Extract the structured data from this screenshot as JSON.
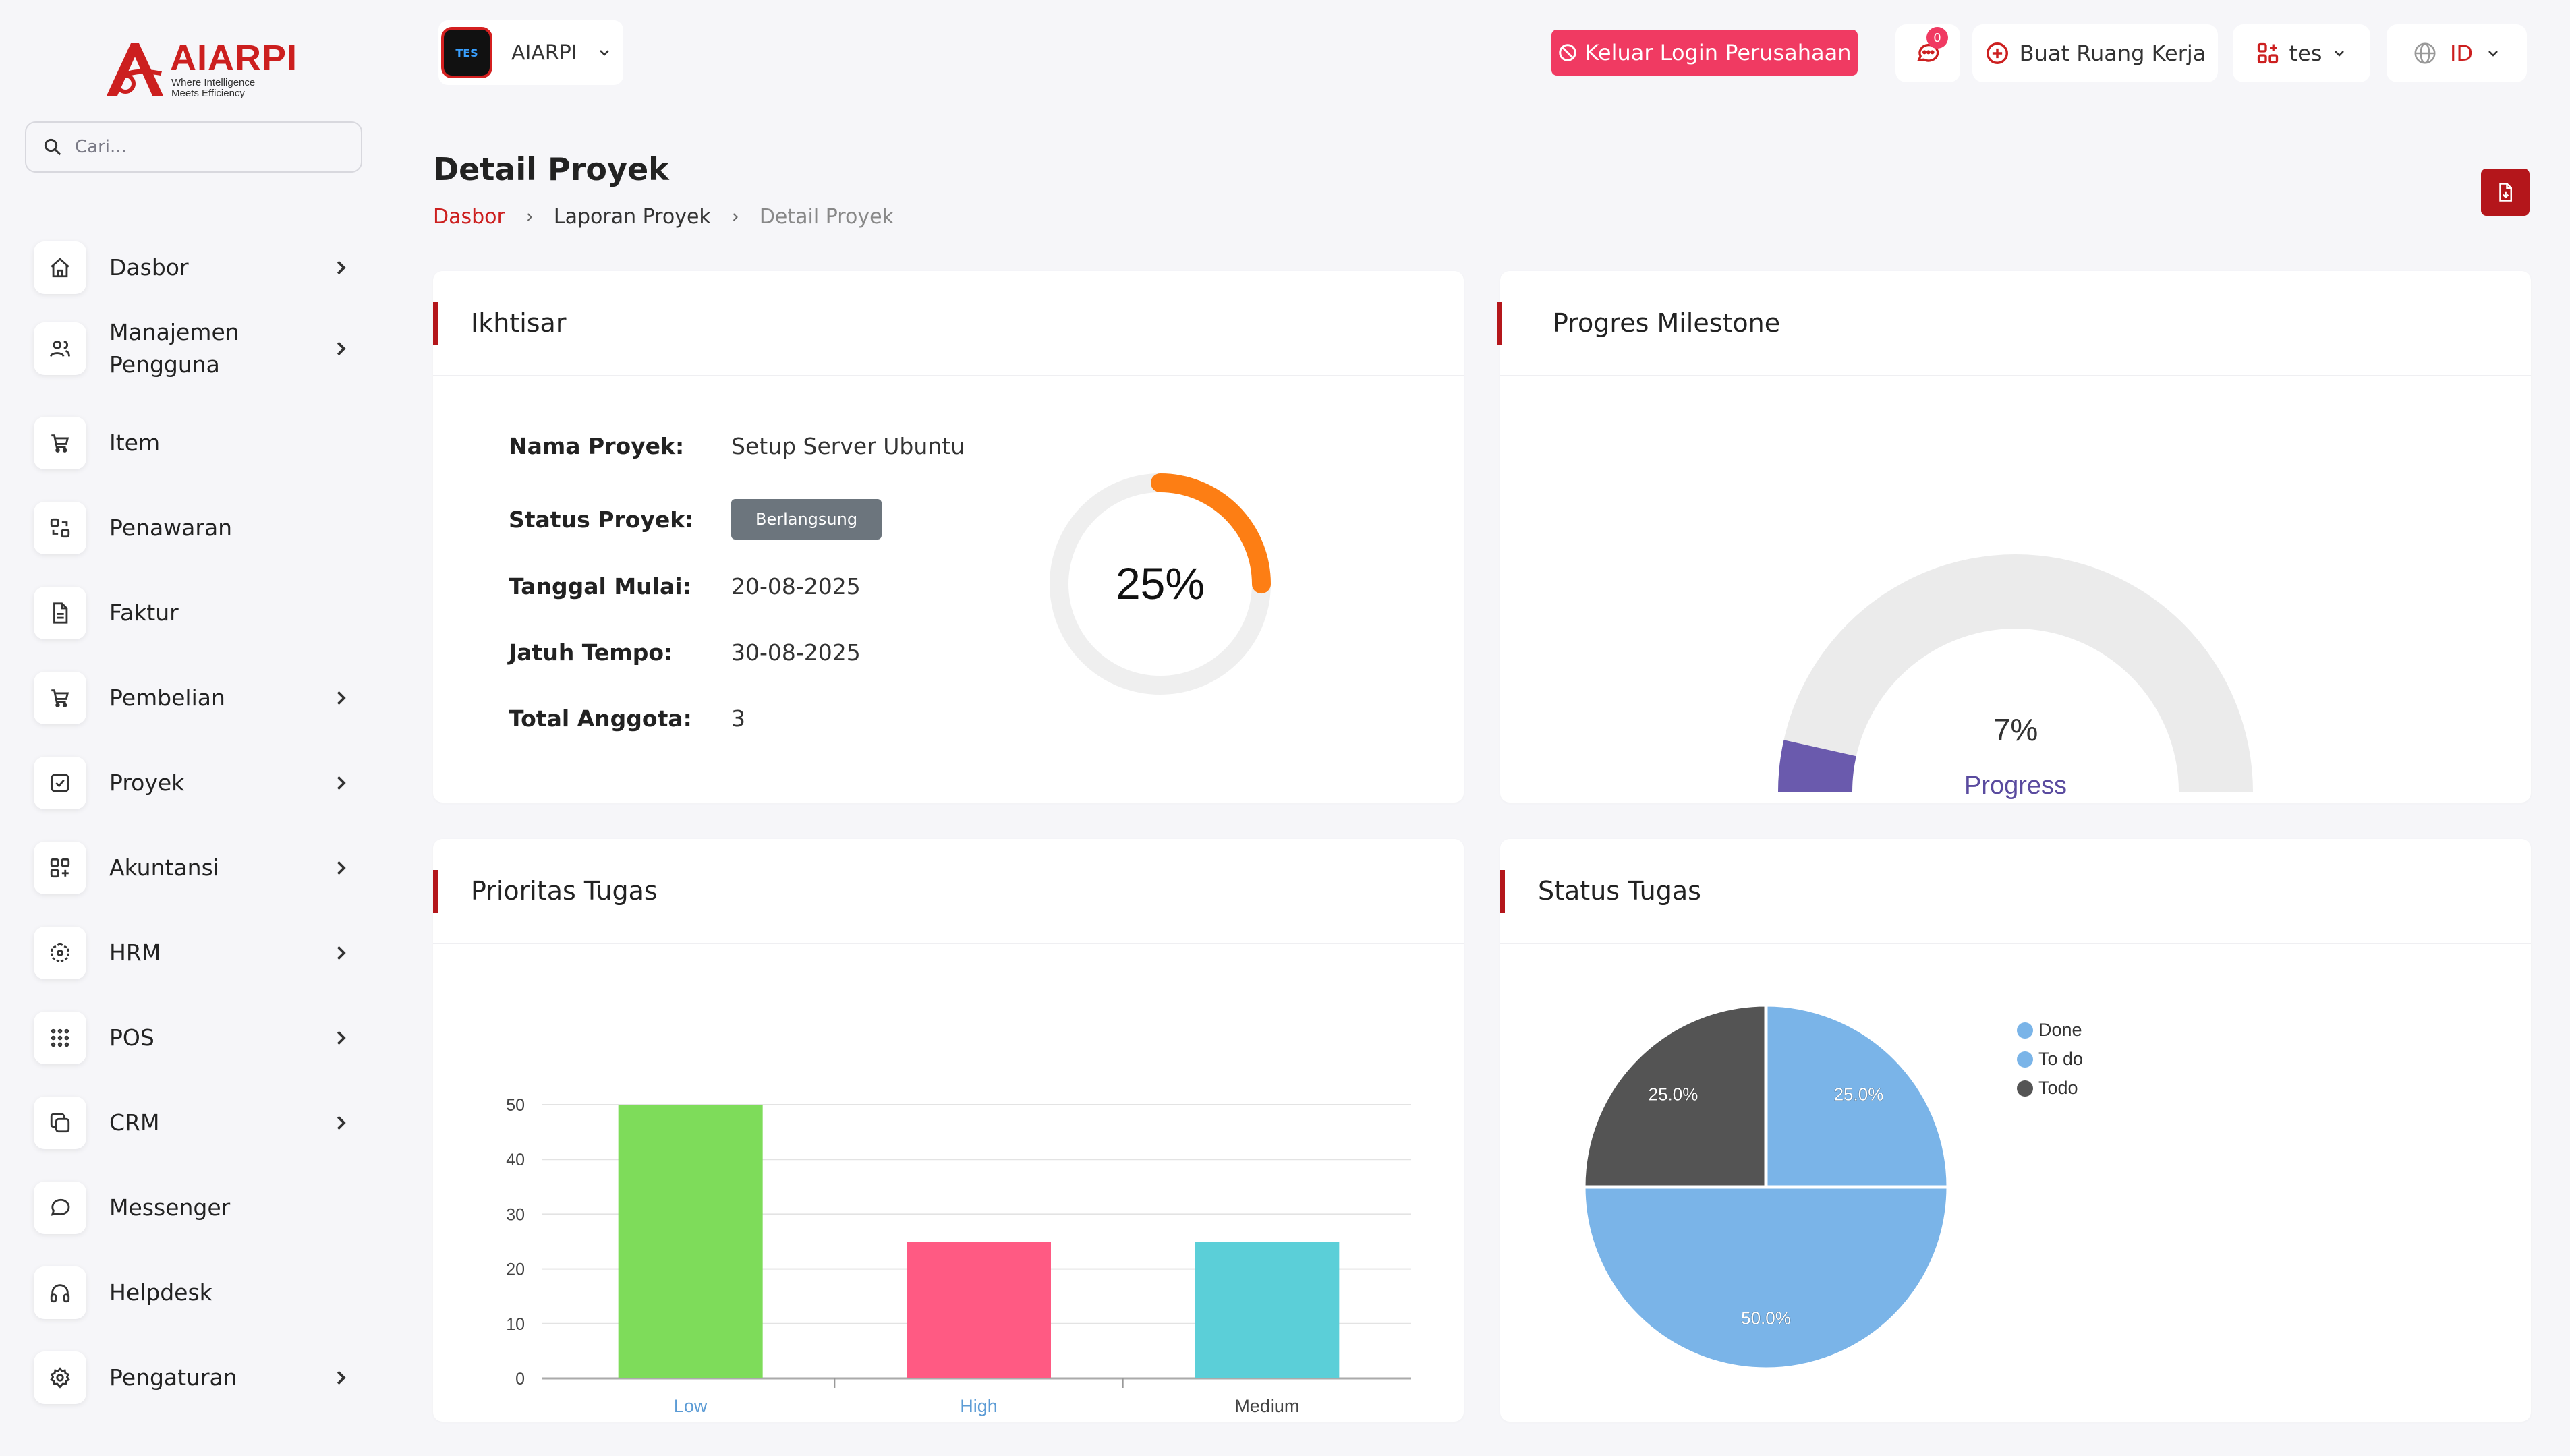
{
  "brand": {
    "name": "AIARPI",
    "tagline_line1": "Where Intelligence",
    "tagline_line2": "Meets Efficiency"
  },
  "search": {
    "placeholder": "Cari..."
  },
  "sidebar": {
    "items": [
      {
        "label": "Dasbor",
        "icon": "home-icon",
        "has_submenu": true
      },
      {
        "label": "Manajemen Pengguna",
        "icon": "users-icon",
        "has_submenu": true
      },
      {
        "label": "Item",
        "icon": "cart-icon",
        "has_submenu": false
      },
      {
        "label": "Penawaran",
        "icon": "swap-icon",
        "has_submenu": false
      },
      {
        "label": "Faktur",
        "icon": "file-icon",
        "has_submenu": false
      },
      {
        "label": "Pembelian",
        "icon": "cart-icon",
        "has_submenu": true
      },
      {
        "label": "Proyek",
        "icon": "checkbox-icon",
        "has_submenu": true
      },
      {
        "label": "Akuntansi",
        "icon": "grid-plus-icon",
        "has_submenu": true
      },
      {
        "label": "HRM",
        "icon": "hexagon-icon",
        "has_submenu": true
      },
      {
        "label": "POS",
        "icon": "dots-grid-icon",
        "has_submenu": true
      },
      {
        "label": "CRM",
        "icon": "copy-icon",
        "has_submenu": true
      },
      {
        "label": "Messenger",
        "icon": "chat-icon",
        "has_submenu": false
      },
      {
        "label": "Helpdesk",
        "icon": "headphones-icon",
        "has_submenu": false
      },
      {
        "label": "Pengaturan",
        "icon": "gear-icon",
        "has_submenu": true
      }
    ]
  },
  "topbar": {
    "company_logo_text": "TES",
    "company": "AIARPI",
    "logout_label": "Keluar Login Perusahaan",
    "message_count": "0",
    "workspace_label": "Buat Ruang Kerja",
    "workspace_current": "tes",
    "language": "ID"
  },
  "page": {
    "title": "Detail Proyek",
    "breadcrumb": [
      "Dasbor",
      "Laporan Proyek",
      "Detail Proyek"
    ]
  },
  "overview": {
    "title": "Ikhtisar",
    "rows": [
      {
        "label": "Nama Proyek:",
        "value": "Setup Server Ubuntu"
      },
      {
        "label": "Status Proyek:",
        "value": "Berlangsung"
      },
      {
        "label": "Tanggal Mulai:",
        "value": "20-08-2025"
      },
      {
        "label": "Jatuh Tempo:",
        "value": "30-08-2025"
      },
      {
        "label": "Total Anggota:",
        "value": "3"
      }
    ],
    "progress_percent": 25,
    "progress_label": "25%"
  },
  "milestone": {
    "title": "Progres Milestone",
    "percent": 7,
    "percent_label": "7%",
    "caption": "Progress"
  },
  "priority": {
    "title": "Prioritas Tugas"
  },
  "status": {
    "title": "Status Tugas"
  },
  "colors": {
    "brand_red": "#b4161b",
    "logout_pink": "#f03a62",
    "ring_orange": "#fd7e14",
    "milestone_purple": "#6a5aad",
    "bar_low": "#7edc5a",
    "bar_high": "#ff5a83",
    "bar_medium": "#5bcfd8",
    "pie_blue": "#7ab4e8",
    "pie_dark": "#545454"
  },
  "chart_data": [
    {
      "type": "bar",
      "categories": [
        "Low",
        "High",
        "Medium"
      ],
      "values": [
        50,
        25,
        25
      ],
      "ylim": [
        0,
        50
      ],
      "yticks": [
        0,
        10,
        20,
        30,
        40,
        50
      ],
      "grid": true
    },
    {
      "type": "pie",
      "labels": [
        "Done",
        "To do",
        "Todo"
      ],
      "values": [
        25.0,
        50.0,
        25.0
      ],
      "data_labels": [
        "25.0%",
        "50.0%",
        "25.0%"
      ],
      "legend_position": "right"
    }
  ]
}
